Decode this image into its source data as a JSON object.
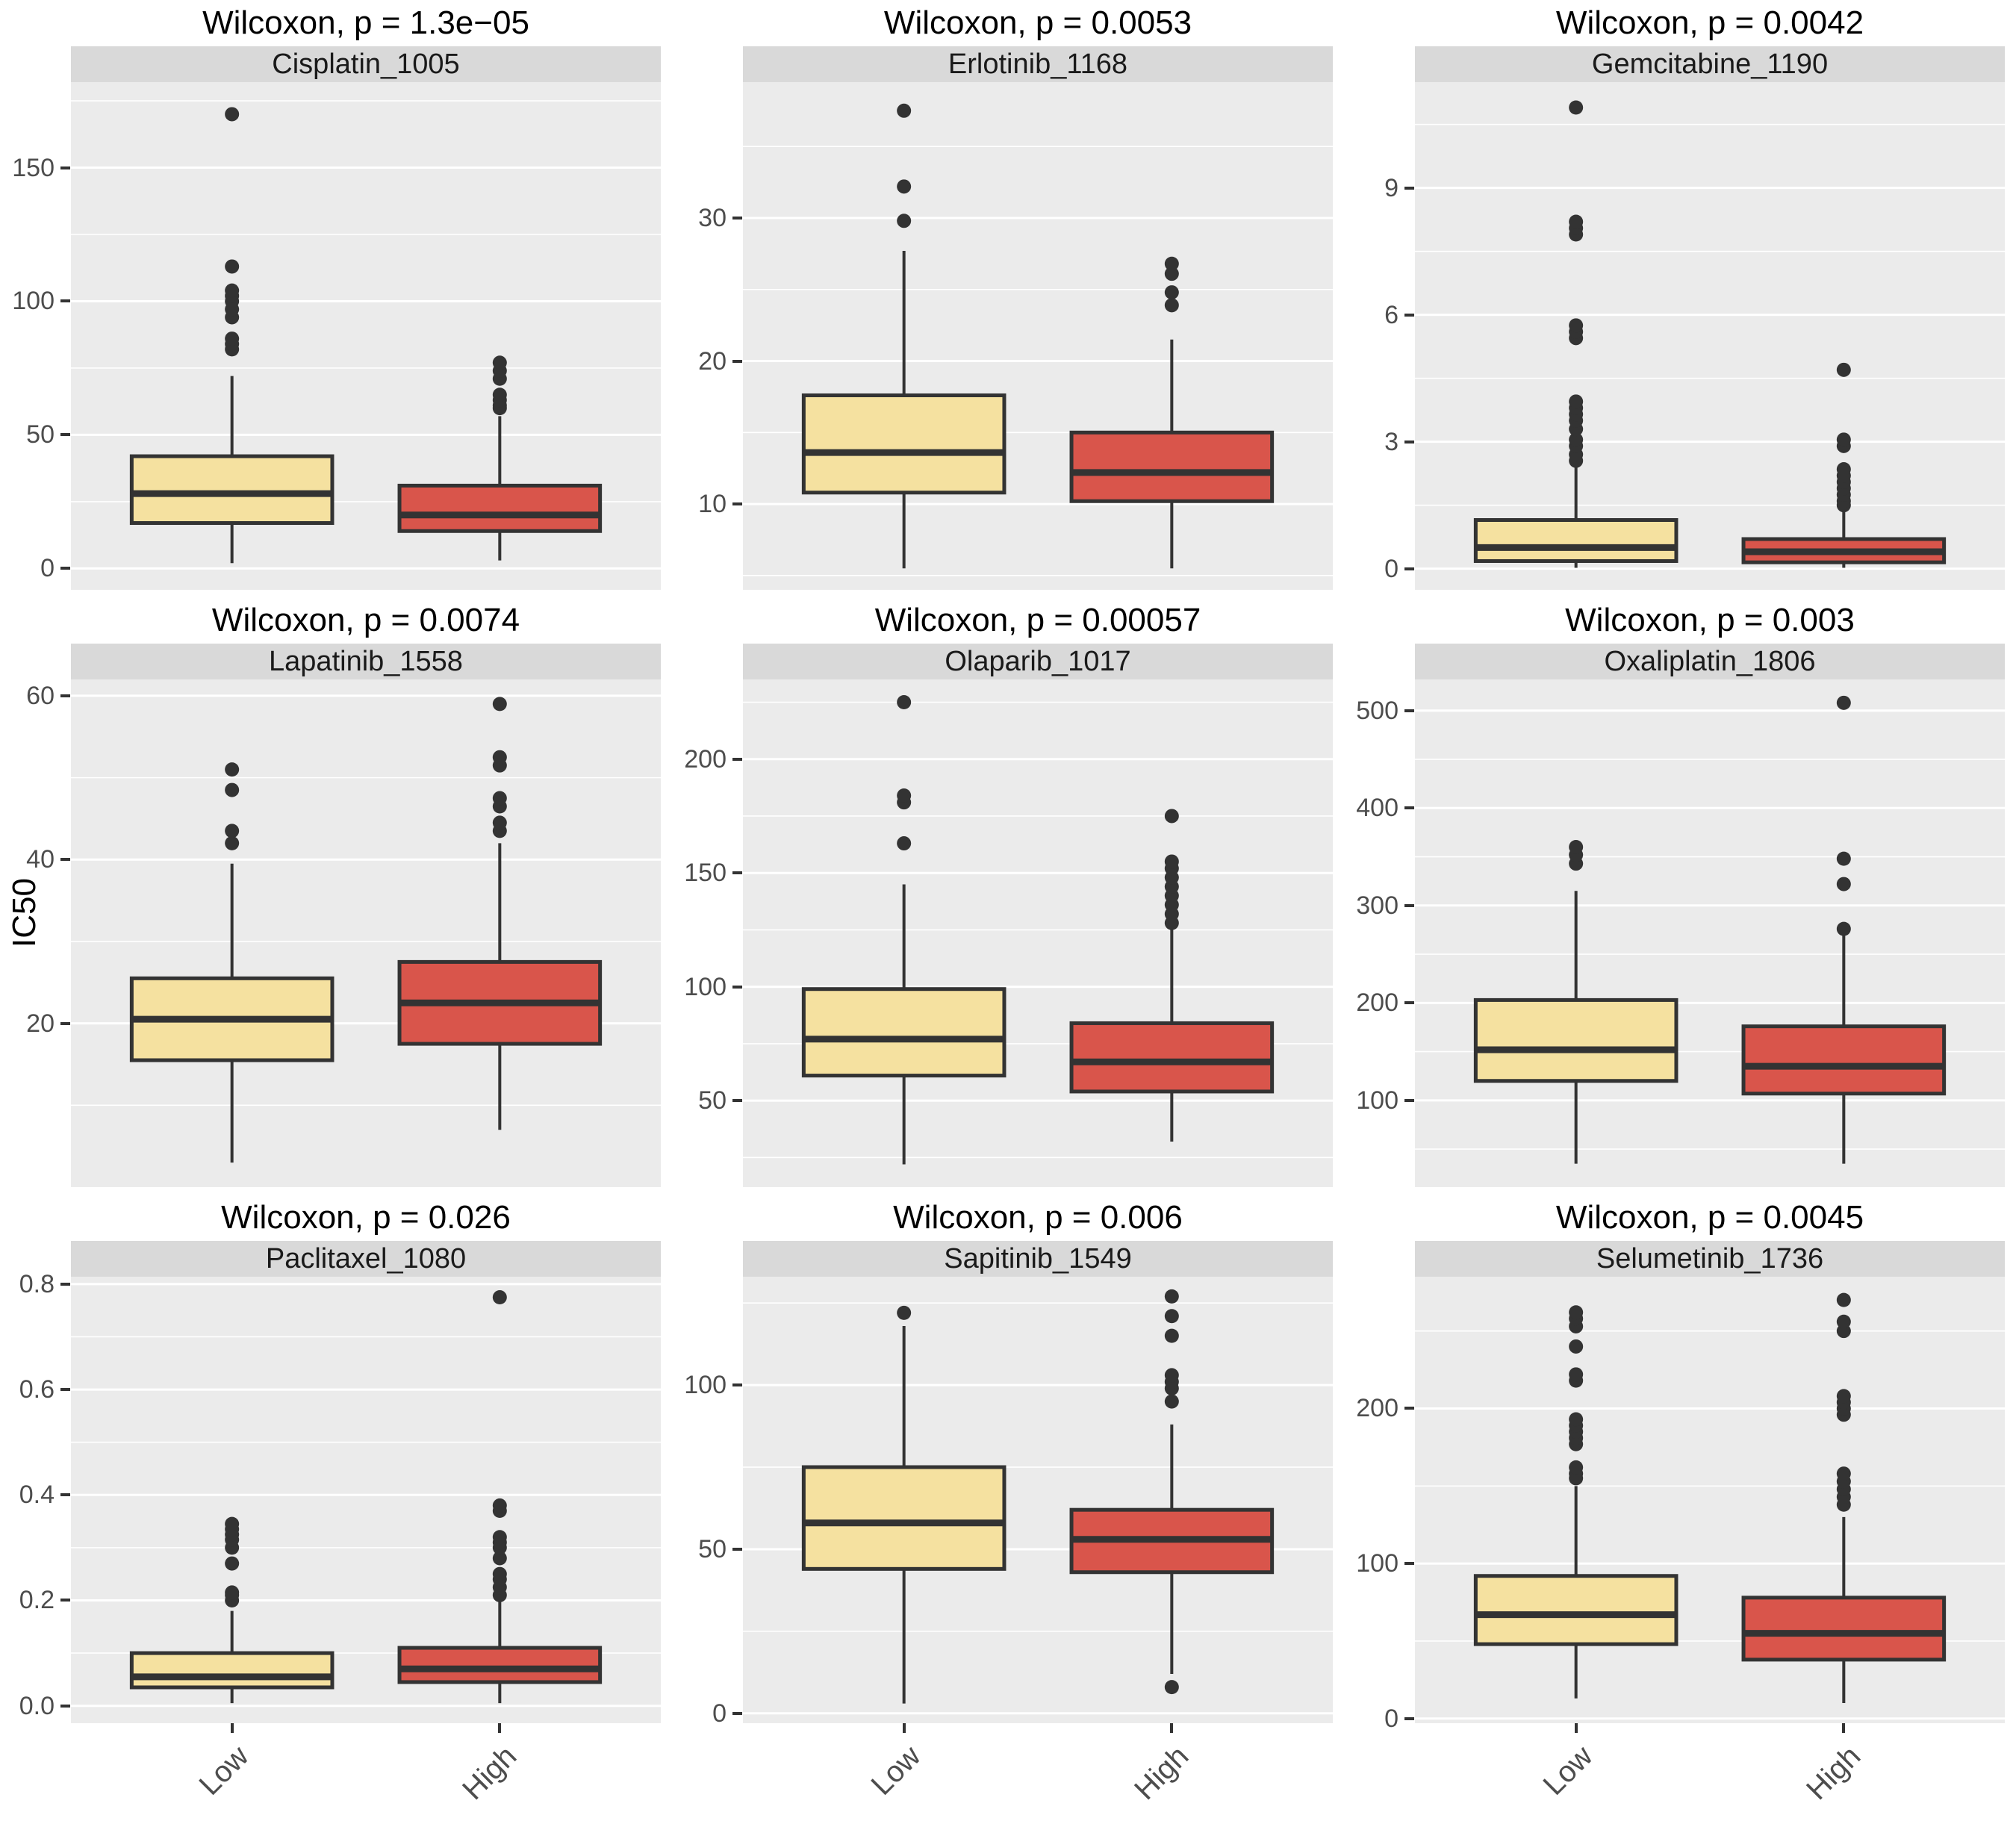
{
  "figure": {
    "ylabel": "IC50",
    "categories": [
      "Low",
      "High"
    ],
    "fill_colors": {
      "Low": "#F5E1A0",
      "High": "#D9554B"
    },
    "stroke_color": "#333333",
    "outlier_color": "#333333",
    "panel_bg": "#EBEBEB",
    "strip_bg": "#D9D9D9",
    "grid_color": "#FFFFFF",
    "tick_text_color": "#4D4D4D",
    "title_color": "#000000",
    "legend": "none",
    "x_axis_rotation": 45
  },
  "chart_data": [
    {
      "type": "boxplot",
      "facet": "Cisplatin_1005",
      "title": "Wilcoxon, p = 1.3e−05",
      "ylim": [
        -8,
        182
      ],
      "yticks": [
        0,
        50,
        100,
        150
      ],
      "ytick_labels": [
        "0",
        "50",
        "100",
        "150"
      ],
      "yminor": [
        25,
        75,
        125,
        175
      ],
      "series": [
        {
          "name": "Low",
          "low": 2,
          "q1": 17,
          "median": 28,
          "q3": 42,
          "high": 72,
          "outliers": [
            82,
            84,
            86,
            94,
            97,
            100,
            102,
            104,
            113,
            170
          ]
        },
        {
          "name": "High",
          "low": 3,
          "q1": 14,
          "median": 20,
          "q3": 31,
          "high": 57,
          "outliers": [
            60,
            61,
            63,
            65,
            71,
            74,
            77
          ]
        }
      ]
    },
    {
      "type": "boxplot",
      "facet": "Erlotinib_1168",
      "title": "Wilcoxon, p = 0.0053",
      "ylim": [
        4,
        39.5
      ],
      "yticks": [
        10,
        20,
        30
      ],
      "ytick_labels": [
        "10",
        "20",
        "30"
      ],
      "yminor": [
        5,
        15,
        25,
        35
      ],
      "series": [
        {
          "name": "Low",
          "low": 5.5,
          "q1": 10.8,
          "median": 13.6,
          "q3": 17.6,
          "high": 27.7,
          "outliers": [
            29.8,
            32.2,
            37.5
          ]
        },
        {
          "name": "High",
          "low": 5.5,
          "q1": 10.2,
          "median": 12.2,
          "q3": 15.0,
          "high": 21.5,
          "outliers": [
            23.9,
            24.8,
            26.1,
            26.8
          ]
        }
      ]
    },
    {
      "type": "boxplot",
      "facet": "Gemcitabine_1190",
      "title": "Wilcoxon, p = 0.0042",
      "ylim": [
        -0.5,
        11.5
      ],
      "yticks": [
        0,
        3,
        6,
        9
      ],
      "ytick_labels": [
        "0",
        "3",
        "6",
        "9"
      ],
      "yminor": [
        1.5,
        4.5,
        7.5,
        10.5
      ],
      "series": [
        {
          "name": "Low",
          "low": 0.02,
          "q1": 0.18,
          "median": 0.5,
          "q3": 1.15,
          "high": 2.4,
          "outliers": [
            2.55,
            2.7,
            2.9,
            3.05,
            3.3,
            3.5,
            3.65,
            3.8,
            3.95,
            5.45,
            5.6,
            5.75,
            7.9,
            8.05,
            8.2,
            10.9
          ]
        },
        {
          "name": "High",
          "low": 0.02,
          "q1": 0.15,
          "median": 0.4,
          "q3": 0.7,
          "high": 1.35,
          "outliers": [
            1.5,
            1.6,
            1.75,
            1.9,
            2.05,
            2.2,
            2.35,
            2.9,
            3.05,
            4.7
          ]
        }
      ]
    },
    {
      "type": "boxplot",
      "facet": "Lapatinib_1558",
      "title": "Wilcoxon, p = 0.0074",
      "ylim": [
        0,
        62
      ],
      "yticks": [
        20,
        40,
        60
      ],
      "ytick_labels": [
        "20",
        "40",
        "60"
      ],
      "yminor": [
        10,
        30,
        50
      ],
      "series": [
        {
          "name": "Low",
          "low": 3,
          "q1": 15.5,
          "median": 20.5,
          "q3": 25.5,
          "high": 39.5,
          "outliers": [
            42,
            43.5,
            48.5,
            51
          ]
        },
        {
          "name": "High",
          "low": 7,
          "q1": 17.5,
          "median": 22.5,
          "q3": 27.5,
          "high": 42,
          "outliers": [
            43.5,
            44.5,
            46.5,
            47.5,
            51.5,
            52.5,
            59
          ]
        }
      ]
    },
    {
      "type": "boxplot",
      "facet": "Olaparib_1017",
      "title": "Wilcoxon, p = 0.00057",
      "ylim": [
        12,
        235
      ],
      "yticks": [
        50,
        100,
        150,
        200
      ],
      "ytick_labels": [
        "50",
        "100",
        "150",
        "200"
      ],
      "yminor": [
        25,
        75,
        125,
        175,
        225
      ],
      "series": [
        {
          "name": "Low",
          "low": 22,
          "q1": 61,
          "median": 77,
          "q3": 99,
          "high": 145,
          "outliers": [
            163,
            181,
            184,
            225
          ]
        },
        {
          "name": "High",
          "low": 32,
          "q1": 54,
          "median": 67,
          "q3": 84,
          "high": 126,
          "outliers": [
            128,
            132,
            136,
            140,
            144,
            148,
            152,
            155,
            175
          ]
        }
      ]
    },
    {
      "type": "boxplot",
      "facet": "Oxaliplatin_1806",
      "title": "Wilcoxon, p = 0.003",
      "ylim": [
        11,
        532
      ],
      "yticks": [
        100,
        200,
        300,
        400,
        500
      ],
      "ytick_labels": [
        "100",
        "200",
        "300",
        "400",
        "500"
      ],
      "yminor": [
        50,
        150,
        250,
        350,
        450
      ],
      "series": [
        {
          "name": "Low",
          "low": 35,
          "q1": 120,
          "median": 152,
          "q3": 203,
          "high": 315,
          "outliers": [
            343,
            352,
            360
          ]
        },
        {
          "name": "High",
          "low": 35,
          "q1": 107,
          "median": 135,
          "q3": 176,
          "high": 270,
          "outliers": [
            276,
            322,
            348,
            508
          ]
        }
      ]
    },
    {
      "type": "boxplot",
      "facet": "Paclitaxel_1080",
      "title": "Wilcoxon, p = 0.026",
      "ylim": [
        -0.033,
        0.814
      ],
      "yticks": [
        0,
        0.2,
        0.4,
        0.6,
        0.8
      ],
      "ytick_labels": [
        "0.0",
        "0.2",
        "0.4",
        "0.6",
        "0.8"
      ],
      "yminor": [
        0.1,
        0.3,
        0.5,
        0.7
      ],
      "series": [
        {
          "name": "Low",
          "low": 0.005,
          "q1": 0.035,
          "median": 0.055,
          "q3": 0.1,
          "high": 0.18,
          "outliers": [
            0.2,
            0.21,
            0.215,
            0.27,
            0.3,
            0.315,
            0.325,
            0.335,
            0.345
          ]
        },
        {
          "name": "High",
          "low": 0.005,
          "q1": 0.045,
          "median": 0.07,
          "q3": 0.11,
          "high": 0.2,
          "outliers": [
            0.21,
            0.225,
            0.24,
            0.25,
            0.28,
            0.3,
            0.31,
            0.32,
            0.37,
            0.38,
            0.775
          ]
        }
      ]
    },
    {
      "type": "boxplot",
      "facet": "Sapitinib_1549",
      "title": "Wilcoxon, p = 0.006",
      "ylim": [
        -3,
        133
      ],
      "yticks": [
        0,
        50,
        100
      ],
      "ytick_labels": [
        "0",
        "50",
        "100"
      ],
      "yminor": [
        25,
        75,
        125
      ],
      "series": [
        {
          "name": "Low",
          "low": 3,
          "q1": 44,
          "median": 58,
          "q3": 75,
          "high": 118,
          "outliers": [
            122
          ]
        },
        {
          "name": "High",
          "low": 12,
          "q1": 43,
          "median": 53,
          "q3": 62,
          "high": 88,
          "outliers": [
            8,
            95,
            99,
            101,
            103,
            115,
            121,
            127
          ]
        }
      ]
    },
    {
      "type": "boxplot",
      "facet": "Selumetinib_1736",
      "title": "Wilcoxon, p = 0.0045",
      "ylim": [
        -3,
        285
      ],
      "yticks": [
        0,
        100,
        200
      ],
      "ytick_labels": [
        "0",
        "100",
        "200"
      ],
      "yminor": [
        50,
        150,
        250
      ],
      "series": [
        {
          "name": "Low",
          "low": 13,
          "q1": 48,
          "median": 67,
          "q3": 92,
          "high": 150,
          "outliers": [
            155,
            158,
            162,
            177,
            181,
            185,
            189,
            193,
            218,
            222,
            240,
            253,
            258,
            262
          ]
        },
        {
          "name": "High",
          "low": 10,
          "q1": 38,
          "median": 55,
          "q3": 78,
          "high": 130,
          "outliers": [
            138,
            143,
            148,
            153,
            158,
            196,
            200,
            204,
            208,
            250,
            256,
            270
          ]
        }
      ]
    }
  ]
}
